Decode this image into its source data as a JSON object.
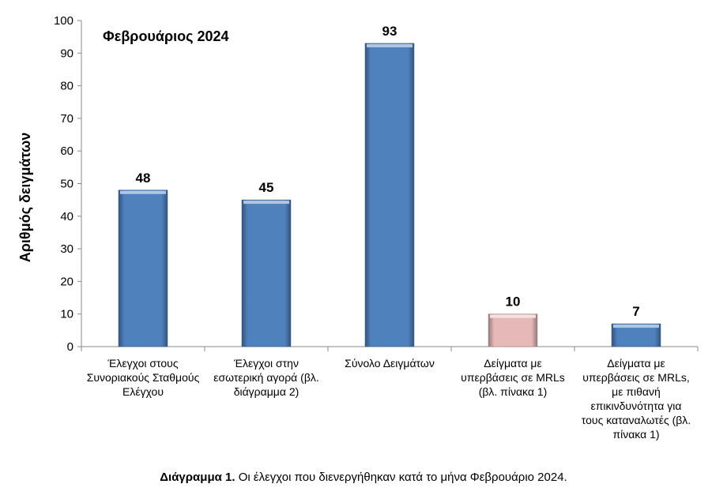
{
  "chart_data": {
    "type": "bar",
    "title": "Φεβρουάριος 2024",
    "ylabel": "Αριθμός δειγμάτων",
    "xlabel": "",
    "ylim": [
      0,
      100
    ],
    "yticks": [
      0,
      10,
      20,
      30,
      40,
      50,
      60,
      70,
      80,
      90,
      100
    ],
    "grid": false,
    "categories": [
      "Έλεγχοι στους Συνοριακούς Σταθμούς Ελέγχου",
      "Έλεγχοι στην εσωτερική αγορά (βλ. διάγραμμα 2)",
      "Σύνολο Δειγμάτων",
      "Δείγματα με υπερβάσεις σε MRLs (βλ. πίνακα 1)",
      "Δείγματα με υπερβάσεις σε MRLs, με πιθανή επικινδυνότητα για τους καταναλωτές (βλ. πίνακα 1)"
    ],
    "values": [
      48,
      45,
      93,
      10,
      7
    ],
    "bar_colors": [
      "#4f81bd",
      "#4f81bd",
      "#4f81bd",
      "#e6b9b8",
      "#4f81bd"
    ],
    "data_labels": [
      "48",
      "45",
      "93",
      "10",
      "7"
    ]
  },
  "caption": {
    "bold": "Διάγραμμα 1.",
    "text": " Οι έλεγχοι που διενεργήθηκαν κατά το μήνα Φεβρουάριο 2024."
  }
}
